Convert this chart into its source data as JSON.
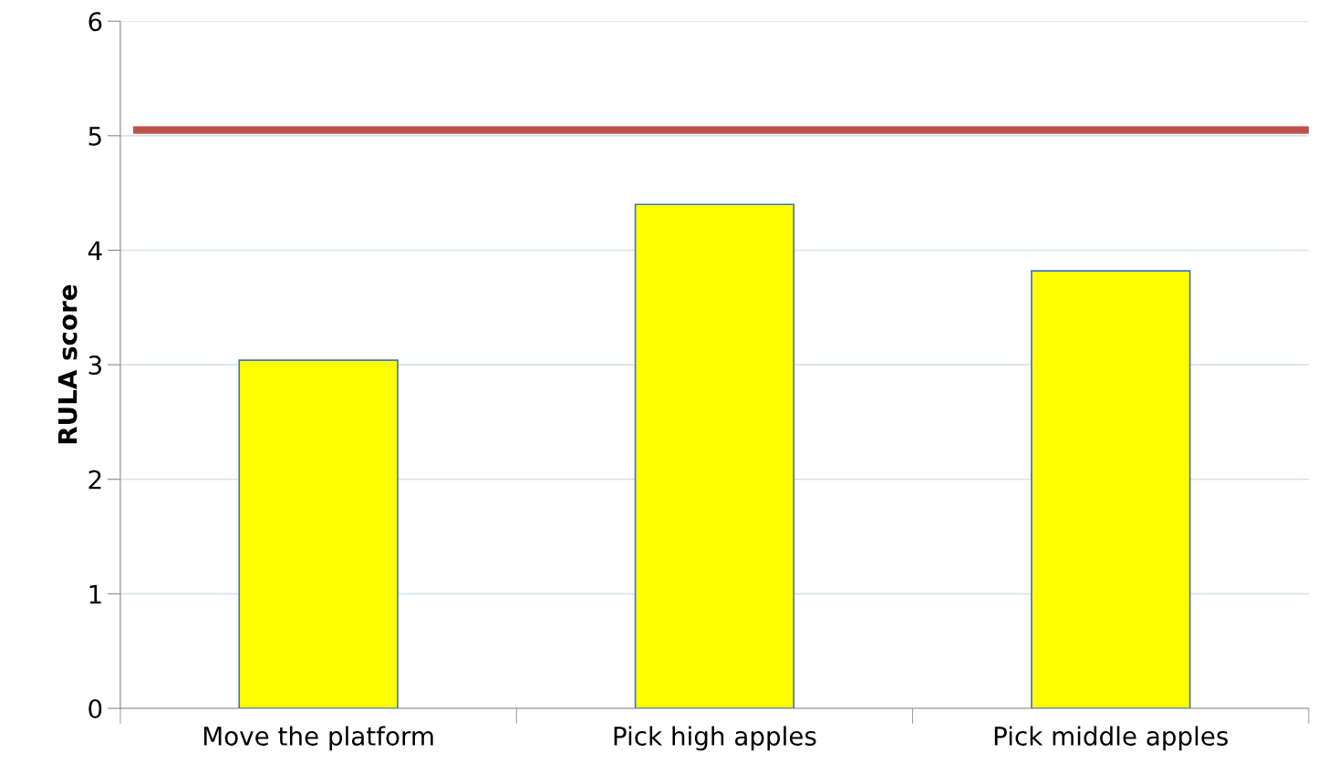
{
  "chart_data": {
    "type": "bar",
    "ylabel": "RULA score",
    "categories": [
      "Move the platform",
      "Pick high apples",
      "Pick middle apples"
    ],
    "values": [
      3.04,
      4.4,
      3.82
    ],
    "color": "#ffff00",
    "ylim": [
      0,
      6
    ],
    "yticks": [
      0,
      1,
      2,
      3,
      4,
      5,
      6
    ],
    "grid": "y",
    "ref_lines": [
      {
        "axis": "y",
        "value": 5.05,
        "color": "#c0504d"
      }
    ]
  }
}
